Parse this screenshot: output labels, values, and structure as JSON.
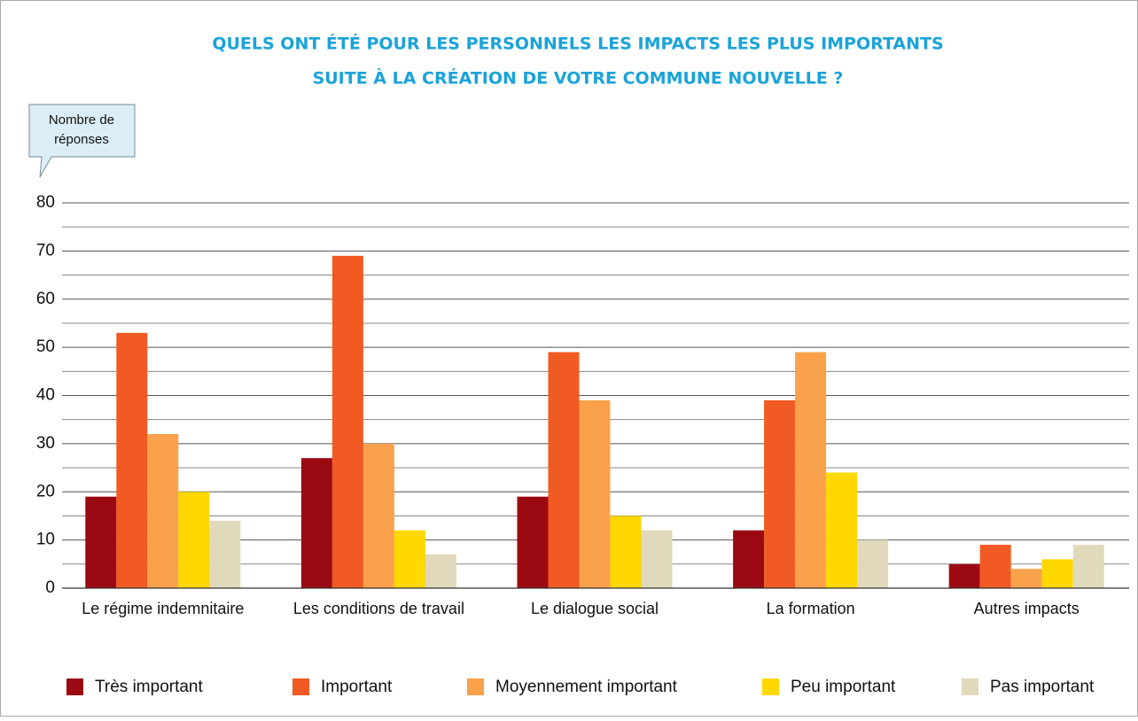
{
  "chart_data": {
    "type": "bar",
    "title": [
      "QUELS ONT ÉTÉ POUR LES PERSONNELS LES IMPACTS LES PLUS IMPORTANTS",
      "SUITE À LA CRÉATION DE VOTRE COMMUNE NOUVELLE ?"
    ],
    "y_label": [
      "Nombre de",
      "réponses"
    ],
    "categories": [
      "Le régime indemnitaire",
      "Les conditions de travail",
      "Le dialogue social",
      "La formation",
      "Autres impacts"
    ],
    "series": [
      {
        "name": "Très important",
        "color": "#9b0a12",
        "values": [
          19,
          27,
          19,
          12,
          5
        ]
      },
      {
        "name": "Important",
        "color": "#f15a22",
        "values": [
          53,
          69,
          49,
          39,
          9
        ]
      },
      {
        "name": "Moyennement important",
        "color": "#f9a24b",
        "values": [
          32,
          30,
          39,
          49,
          4
        ]
      },
      {
        "name": "Peu important",
        "color": "#ffd800",
        "values": [
          20,
          12,
          15,
          24,
          6
        ]
      },
      {
        "name": "Pas important",
        "color": "#e0d9bc",
        "values": [
          14,
          7,
          12,
          10,
          9
        ]
      }
    ],
    "ylim": [
      0,
      80
    ],
    "yticks": [
      0,
      10,
      20,
      30,
      40,
      50,
      60,
      70,
      80
    ],
    "yminor": [
      5,
      15,
      25,
      35,
      45,
      55,
      65,
      75
    ],
    "grid": true,
    "legend": "bottom"
  }
}
